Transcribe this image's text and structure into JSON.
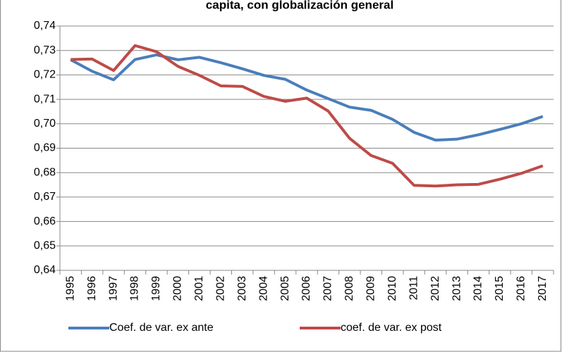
{
  "chart_data": {
    "type": "line",
    "title": "capita, con globalización general",
    "categories": [
      "1995",
      "1996",
      "1997",
      "1998",
      "1999",
      "2000",
      "2001",
      "2002",
      "2003",
      "2004",
      "2005",
      "2006",
      "2007",
      "2008",
      "2009",
      "2010",
      "2011",
      "2012",
      "2013",
      "2014",
      "2015",
      "2016",
      "2017"
    ],
    "series": [
      {
        "name": "Coef. de var. ex ante",
        "color": "#4a7ebb",
        "values": [
          0.7262,
          0.7215,
          0.718,
          0.7263,
          0.7282,
          0.7262,
          0.7272,
          0.725,
          0.7225,
          0.7198,
          0.7182,
          0.7138,
          0.7103,
          0.7068,
          0.7055,
          0.7018,
          0.6965,
          0.6933,
          0.6937,
          0.6955,
          0.6977,
          0.7,
          0.703
        ]
      },
      {
        "name": "coef. de var. ex post",
        "color": "#be4b48",
        "values": [
          0.7263,
          0.7265,
          0.7218,
          0.732,
          0.7295,
          0.7235,
          0.7198,
          0.7155,
          0.7153,
          0.7112,
          0.7092,
          0.7105,
          0.7052,
          0.694,
          0.687,
          0.6838,
          0.6748,
          0.6745,
          0.675,
          0.6752,
          0.6773,
          0.6797,
          0.6828
        ]
      }
    ],
    "ylim": [
      0.64,
      0.74
    ],
    "yticks": [
      {
        "value": 0.64,
        "label": "0,64"
      },
      {
        "value": 0.65,
        "label": "0,65"
      },
      {
        "value": 0.66,
        "label": "0,66"
      },
      {
        "value": 0.67,
        "label": "0,67"
      },
      {
        "value": 0.68,
        "label": "0,68"
      },
      {
        "value": 0.69,
        "label": "0,69"
      },
      {
        "value": 0.7,
        "label": "0,70"
      },
      {
        "value": 0.71,
        "label": "0,71"
      },
      {
        "value": 0.72,
        "label": "0,72"
      },
      {
        "value": 0.73,
        "label": "0,73"
      },
      {
        "value": 0.74,
        "label": "0,74"
      }
    ],
    "grid": true,
    "legend": "bottom"
  }
}
